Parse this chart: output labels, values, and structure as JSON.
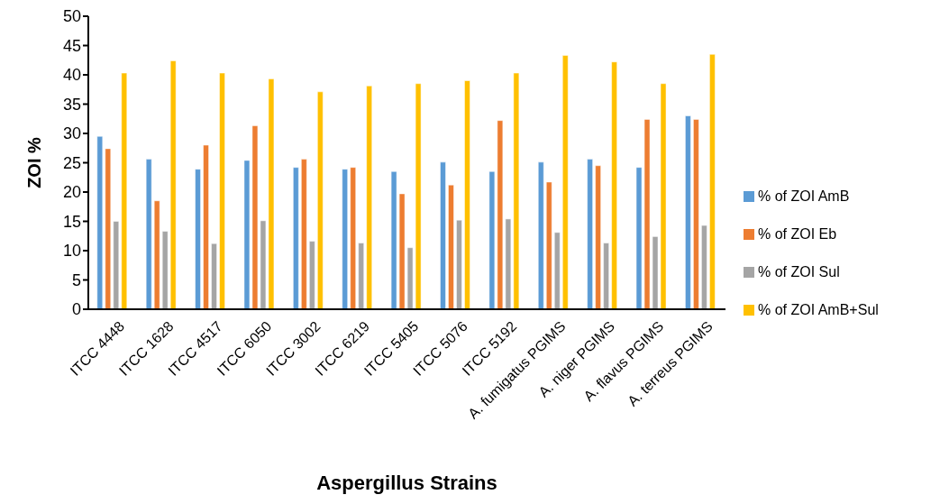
{
  "chart_data": {
    "type": "bar",
    "xlabel": "Aspergillus Strains",
    "ylabel": "ZOI %",
    "categories": [
      "ITCC 4448",
      "ITCC 1628",
      "ITCC 4517",
      "ITCC 6050",
      "ITCC 3002",
      "ITCC 6219",
      "ITCC 5405",
      "ITCC 5076",
      "ITCC 5192",
      "A. fumigatus PGIMS",
      "A. niger PGIMS",
      "A. flavus PGIMS",
      "A. terreus PGIMS"
    ],
    "series": [
      {
        "name": "% of ZOI AmB",
        "color": "#5b9bd5",
        "values": [
          29.5,
          25.6,
          23.9,
          25.4,
          24.2,
          23.9,
          23.5,
          25.1,
          23.5,
          25.1,
          25.6,
          24.2,
          33.0
        ]
      },
      {
        "name": "% of ZOI Eb",
        "color": "#ed7d31",
        "values": [
          27.4,
          18.5,
          28.0,
          31.3,
          25.6,
          24.2,
          19.7,
          21.2,
          32.2,
          21.7,
          24.5,
          32.4,
          32.4
        ]
      },
      {
        "name": "% of ZOI Sul",
        "color": "#a5a5a5",
        "values": [
          15.0,
          13.3,
          11.2,
          15.1,
          11.6,
          11.3,
          10.5,
          15.2,
          15.4,
          13.1,
          11.3,
          12.4,
          14.3
        ]
      },
      {
        "name": "% of ZOI AmB+Sul",
        "color": "#ffc000",
        "values": [
          40.3,
          42.4,
          40.3,
          39.3,
          37.1,
          38.1,
          38.5,
          39.0,
          40.3,
          43.3,
          42.2,
          38.5,
          43.5
        ]
      }
    ],
    "ylim": [
      0,
      50
    ],
    "yticks": [
      0,
      5,
      10,
      15,
      20,
      25,
      30,
      35,
      40,
      45,
      50
    ],
    "grid": false,
    "legend": "right"
  }
}
